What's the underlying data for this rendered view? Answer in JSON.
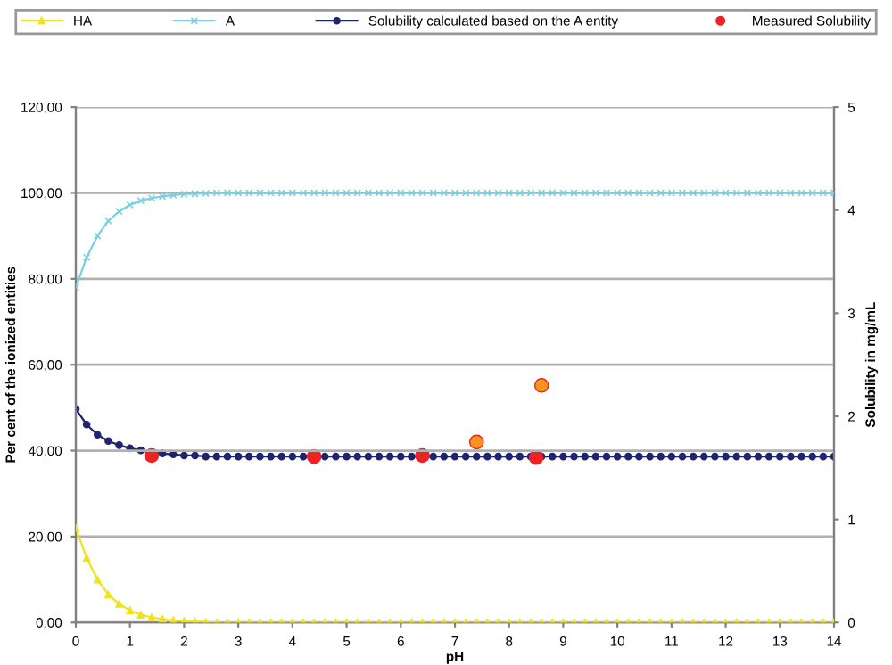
{
  "chart_data": {
    "type": "line",
    "xlabel": "pH",
    "ylabel": "Per cent of the ionized entities",
    "y2label": "Solubility in mg/mL",
    "xlim": [
      0,
      14
    ],
    "xticks": [
      0,
      1,
      2,
      3,
      4,
      5,
      6,
      7,
      8,
      9,
      10,
      11,
      12,
      13,
      14
    ],
    "ylim": [
      0,
      120
    ],
    "yticks": [
      {
        "value": 0,
        "label": "0,00"
      },
      {
        "value": 20,
        "label": "20,00"
      },
      {
        "value": 40,
        "label": "40,00"
      },
      {
        "value": 60,
        "label": "60,00"
      },
      {
        "value": 80,
        "label": "80,00"
      },
      {
        "value": 100,
        "label": "100,00"
      },
      {
        "value": 120,
        "label": "120,00"
      }
    ],
    "y2lim": [
      0,
      5
    ],
    "y2ticks": [
      0,
      1,
      2,
      3,
      4,
      5
    ],
    "grid": "y",
    "legend": "top",
    "x": [
      0,
      0.2,
      0.4,
      0.6,
      0.8,
      1,
      1.2,
      1.4,
      1.6,
      1.8,
      2,
      2.2,
      2.4,
      2.6,
      2.8,
      3,
      3.2,
      3.4,
      3.6,
      3.8,
      4,
      4.2,
      4.4,
      4.6,
      4.8,
      5,
      5.2,
      5.4,
      5.6,
      5.8,
      6,
      6.2,
      6.4,
      6.6,
      6.8,
      7,
      7.2,
      7.4,
      7.6,
      7.8,
      8,
      8.2,
      8.4,
      8.6,
      8.8,
      9,
      9.2,
      9.4,
      9.6,
      9.8,
      10,
      10.2,
      10.4,
      10.6,
      10.8,
      11,
      11.2,
      11.4,
      11.6,
      11.8,
      12,
      12.2,
      12.4,
      12.6,
      12.8,
      13,
      13.2,
      13.4,
      13.6,
      13.8,
      14
    ],
    "series": [
      {
        "name": "HA",
        "color": "#f2e21a",
        "marker": "triangle",
        "values": [
          22,
          15,
          10,
          6.5,
          4.3,
          2.8,
          1.8,
          1.2,
          0.8,
          0.5,
          0.3,
          0.2,
          0.1,
          0,
          0,
          0,
          0,
          0,
          0,
          0,
          0,
          0,
          0,
          0,
          0,
          0,
          0,
          0,
          0,
          0,
          0,
          0,
          0,
          0,
          0,
          0,
          0,
          0,
          0,
          0,
          0,
          0,
          0,
          0,
          0,
          0,
          0,
          0,
          0,
          0,
          0,
          0,
          0,
          0,
          0,
          0,
          0,
          0,
          0,
          0,
          0,
          0,
          0,
          0,
          0,
          0,
          0,
          0,
          0,
          0,
          0
        ]
      },
      {
        "name": "A",
        "color": "#7ccfe0",
        "marker": "cross",
        "values": [
          78,
          85,
          90,
          93.5,
          95.7,
          97.2,
          98.2,
          98.8,
          99.2,
          99.5,
          99.7,
          99.8,
          99.9,
          100,
          100,
          100,
          100,
          100,
          100,
          100,
          100,
          100,
          100,
          100,
          100,
          100,
          100,
          100,
          100,
          100,
          100,
          100,
          100,
          100,
          100,
          100,
          100,
          100,
          100,
          100,
          100,
          100,
          100,
          100,
          100,
          100,
          100,
          100,
          100,
          100,
          100,
          100,
          100,
          100,
          100,
          100,
          100,
          100,
          100,
          100,
          100,
          100,
          100,
          100,
          100,
          100,
          100,
          100,
          100,
          100,
          100
        ]
      },
      {
        "name": "Solubility calculated based on the A entity",
        "color": "#1f2470",
        "marker": "circle",
        "axis": "y2",
        "values": [
          2.07,
          1.92,
          1.82,
          1.76,
          1.72,
          1.69,
          1.67,
          1.65,
          1.64,
          1.63,
          1.62,
          1.62,
          1.61,
          1.61,
          1.61,
          1.61,
          1.61,
          1.61,
          1.61,
          1.61,
          1.61,
          1.61,
          1.61,
          1.61,
          1.61,
          1.61,
          1.61,
          1.61,
          1.61,
          1.61,
          1.61,
          1.61,
          1.61,
          1.61,
          1.61,
          1.61,
          1.61,
          1.61,
          1.61,
          1.61,
          1.61,
          1.61,
          1.61,
          1.61,
          1.61,
          1.61,
          1.61,
          1.61,
          1.61,
          1.61,
          1.61,
          1.61,
          1.61,
          1.61,
          1.61,
          1.61,
          1.61,
          1.61,
          1.61,
          1.61,
          1.61,
          1.61,
          1.61,
          1.61,
          1.61,
          1.61,
          1.61,
          1.61,
          1.61,
          1.61,
          1.61
        ]
      },
      {
        "name": "Measured Solubility",
        "type": "scatter",
        "color": "#ee2222",
        "marker": "circle",
        "axis": "y2",
        "x": [
          1.4,
          4.4,
          6.4,
          8.5,
          7.4,
          8.6
        ],
        "values": [
          1.62,
          1.61,
          1.62,
          1.6,
          1.75,
          2.3
        ],
        "colors": [
          "#ee2222",
          "#ee2222",
          "#ee2222",
          "#ee2222",
          "#f7941d",
          "#f7941d"
        ]
      }
    ]
  }
}
